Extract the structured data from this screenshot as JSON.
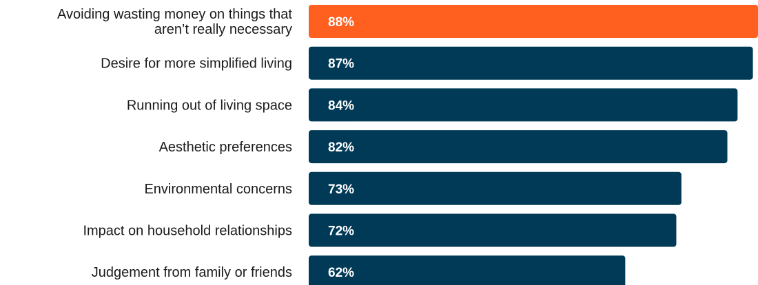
{
  "chart_data": {
    "type": "bar",
    "orientation": "horizontal",
    "categories": [
      [
        "Avoiding wasting money on things that",
        "aren’t really necessary"
      ],
      [
        "Desire for more simplified living"
      ],
      [
        "Running out of living space"
      ],
      [
        "Aesthetic preferences"
      ],
      [
        "Environmental concerns"
      ],
      [
        "Impact on household relationships"
      ],
      [
        "Judgement from family or friends"
      ]
    ],
    "values": [
      88,
      87,
      84,
      82,
      73,
      72,
      62
    ],
    "value_labels": [
      "88%",
      "87%",
      "84%",
      "82%",
      "73%",
      "72%",
      "62%"
    ],
    "highlight_index": 0,
    "colors": {
      "highlight": "#ff5f1f",
      "default": "#003a57"
    },
    "xlim": [
      0,
      88
    ]
  }
}
